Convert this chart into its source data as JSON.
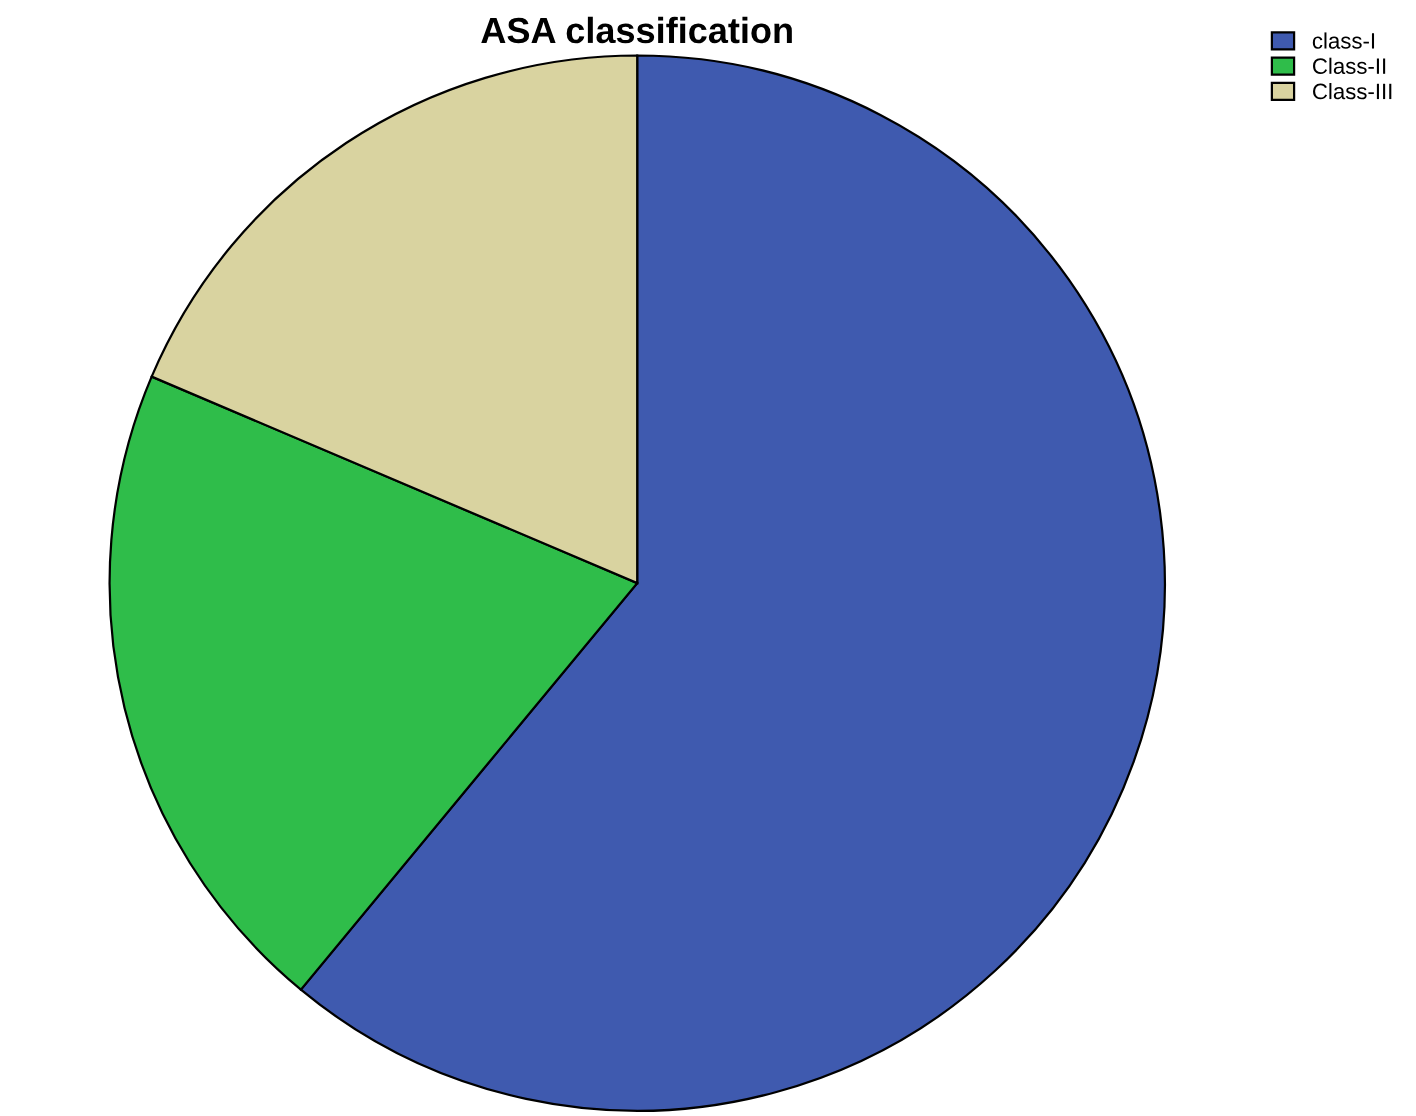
{
  "chart_data": {
    "type": "pie",
    "title": "ASA classification",
    "categories": [
      "class-I",
      "Class-II",
      "Class-III"
    ],
    "values": [
      61,
      20.4,
      18.6
    ],
    "colors": [
      "#3f5aaf",
      "#2fbd4a",
      "#d9d3a0"
    ],
    "legend": "top right"
  }
}
